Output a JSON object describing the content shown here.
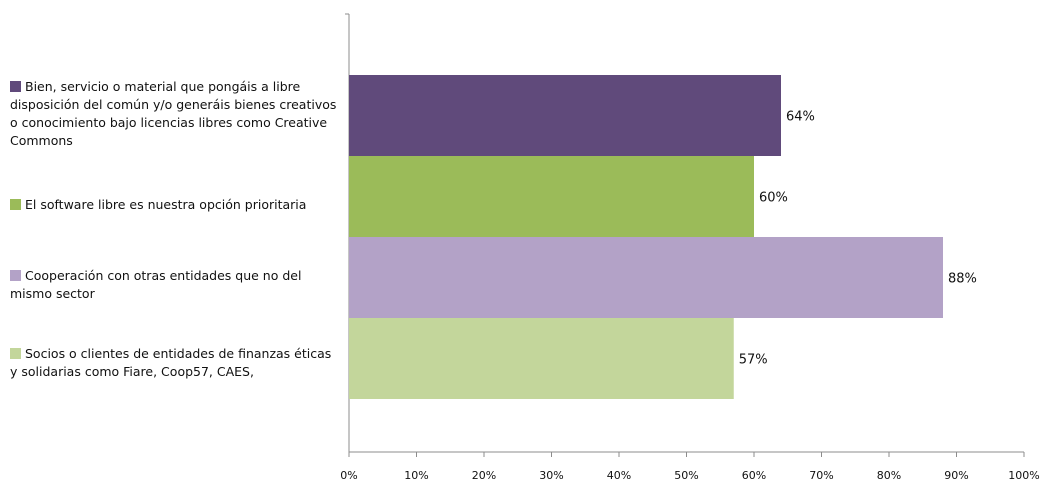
{
  "chart_data": {
    "type": "bar",
    "orientation": "horizontal",
    "categories": [
      "Bien, servicio o material que pongáis a libre disposición del común y/o generáis bienes creativos o conocimiento bajo licencias libres como Creative Commons",
      "El software libre es nuestra opción prioritaria",
      "Cooperación con otras entidades que no del mismo sector",
      "Socios o clientes de entidades de finanzas éticas y solidarias como Fiare, Coop57, CAES,"
    ],
    "values": [
      64,
      60,
      88,
      57
    ],
    "data_labels": [
      "64%",
      "60%",
      "88%",
      "57%"
    ],
    "colors": [
      "#604a7b",
      "#9bbb59",
      "#b3a2c7",
      "#c3d69b"
    ],
    "xlim": [
      0,
      100
    ],
    "x_ticks": [
      "0%",
      "10%",
      "20%",
      "30%",
      "40%",
      "50%",
      "60%",
      "70%",
      "80%",
      "90%",
      "100%"
    ],
    "grid": false,
    "legend_position": "left",
    "title": "",
    "xlabel": "",
    "ylabel": ""
  }
}
